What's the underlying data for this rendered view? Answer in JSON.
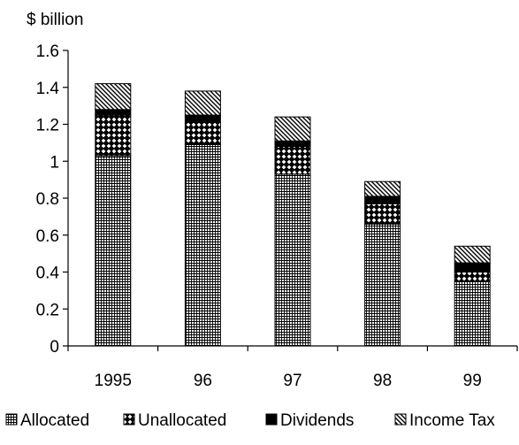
{
  "chart_data": {
    "type": "bar",
    "stacked": true,
    "title": "",
    "ylabel": "$ billion",
    "xlabel": "",
    "categories": [
      "1995",
      "96",
      "97",
      "98",
      "99"
    ],
    "ylim": [
      0,
      1.6
    ],
    "yticks": [
      "0",
      "0.2",
      "0.4",
      "0.6",
      "0.8",
      "1",
      "1.2",
      "1.4",
      "1.6"
    ],
    "grid": false,
    "legend_position": "bottom",
    "series": [
      {
        "name": "Allocated",
        "pattern": "grid",
        "values": [
          1.03,
          1.09,
          0.93,
          0.66,
          0.35
        ]
      },
      {
        "name": "Unallocated",
        "pattern": "diamonds",
        "values": [
          0.22,
          0.12,
          0.15,
          0.11,
          0.05
        ]
      },
      {
        "name": "Dividends",
        "pattern": "solid",
        "values": [
          0.03,
          0.04,
          0.03,
          0.04,
          0.05
        ]
      },
      {
        "name": "Income Tax",
        "pattern": "diagonal",
        "values": [
          0.14,
          0.13,
          0.13,
          0.08,
          0.09
        ]
      }
    ],
    "colors": {
      "ink": "#000000",
      "background": "#ffffff"
    }
  }
}
